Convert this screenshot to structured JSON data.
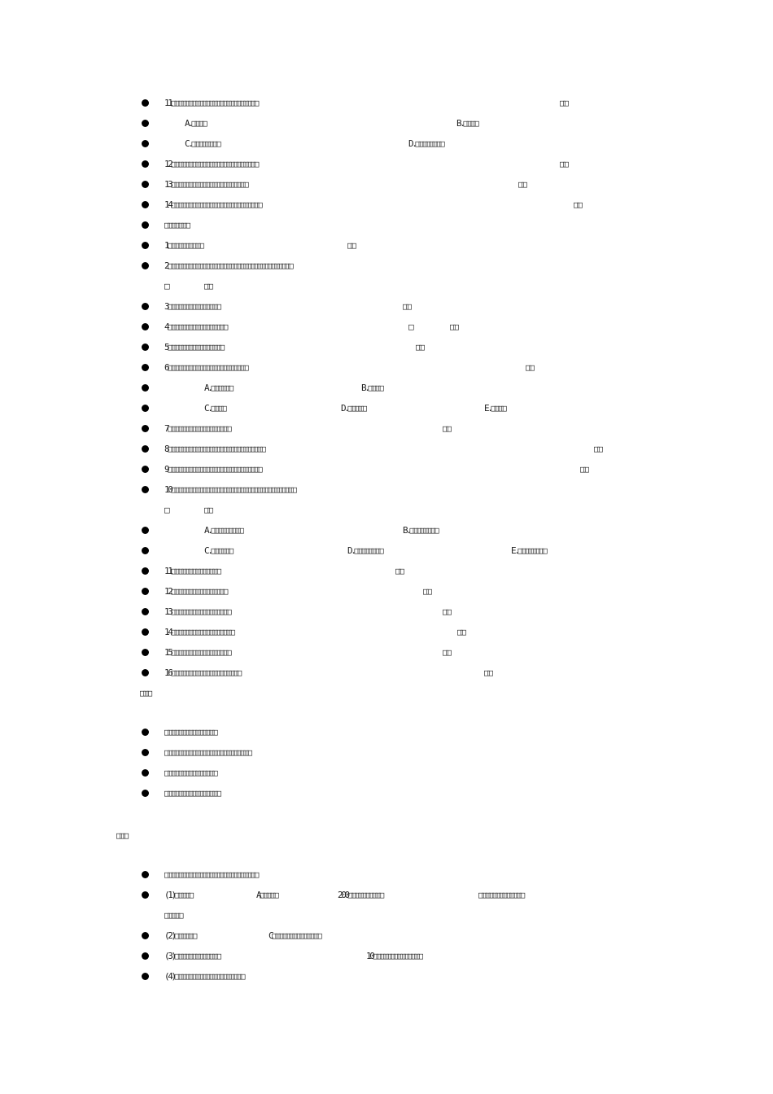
{
  "lines": [
    [
      "11□□□□□□□□□□□□□□□□□□□□□□□□□",
      "□□"
    ],
    [
      "A.□□□□",
      "B.□□□□"
    ],
    [
      "C.□□□□□□□□",
      "D.□□□□□□□□"
    ],
    [
      "12□□□□□□□□□□□□□□□□□□□□□□□□□",
      "□□"
    ],
    [
      "13□□□□□□□□□□□□□□□□□□□□□□",
      "□□"
    ],
    [
      "14□□□□□□□□□□□□□□□□□□□□□□□□□□",
      "□□"
    ],
    [
      "□□□□□□□"
    ],
    [
      "1□□□□□□□□□□",
      "□□"
    ],
    [
      "2□□□□□□□□□□□□□□□□□□□□□□□□□□□□□□□□□□□□"
    ],
    [
      "□",
      "□□"
    ],
    [
      "3□□□□□□□□□□□□□□□",
      "□□"
    ],
    [
      "4□□□□□□□□□□□□□□□□□",
      "□",
      "□□"
    ],
    [
      "5□□□□□□□□□□□□□□□□",
      "□□"
    ],
    [
      "6□□□□□□□□□□□□□□□□□□□□□□□",
      "□□"
    ],
    [
      "A.□□□□□□",
      "B.□□□□"
    ],
    [
      "C.□□□□",
      "D.□□□□□",
      "E.□□□□"
    ],
    [
      "7□□□□□□□□□□□□□□□□□□",
      "□□"
    ],
    [
      "8□□□□□□□□□□□□□□□□□□□□□□□□□□□□",
      "□□"
    ],
    [
      "9□□□□□□□□□□□□□□□□□□□□□□□□□□□",
      "□□"
    ],
    [
      "10□□□□□□□□□□□□□□□□□□□□□□□□□□□□□□□□□□□□"
    ],
    [
      "□",
      "□□"
    ],
    [
      "A.□□□□□□□□□",
      "B.□□□□□□□□"
    ],
    [
      "C.□□□□□□",
      "D.□□□□□□□□",
      "E.□□□□□□□□"
    ],
    [
      "11□□□□□□□□□□□□□□",
      "□□"
    ],
    [
      "12□□□□□□□□□□□□□□□□",
      "□□"
    ],
    [
      "13□□□□□□□□□□□□□□□□□",
      "□□"
    ],
    [
      "14□□□□□□□□□□□□□□□□□□",
      "□□"
    ],
    [
      "15□□□□□□□□□□□□□□□□□",
      "□□"
    ],
    [
      "16□□□□□□□□□□□□□□□□□□□□",
      "□□"
    ],
    [
      "□□□"
    ],
    [
      "□□□□□□□□□□□□□□□"
    ],
    [
      "□□□□□□□□□□□□□□□□□□□□□□□□□"
    ],
    [
      "□□□□□□□□□□□□□□□"
    ],
    [
      "□□□□□□□□□□□□□□□□"
    ],
    [
      "□□□"
    ],
    [
      "□□□□□□□□□□□□□□□□□□□□□□□□□□□"
    ],
    [
      "(1)□□□□□",
      "A□□□□□",
      "200□□□□□□□□□□",
      "□□□□□□□□□□□□□"
    ],
    [
      "□□□□□"
    ],
    [
      "(2)□□□□□□",
      "C□□□□□□□□□□□□□□"
    ],
    [
      "(3)□□□□□□□□□□□□□",
      "10□□□□□□□□□□□□□□"
    ],
    [
      "(4)□□□□□□□□□□□□□□□□□□□□"
    ]
  ]
}
